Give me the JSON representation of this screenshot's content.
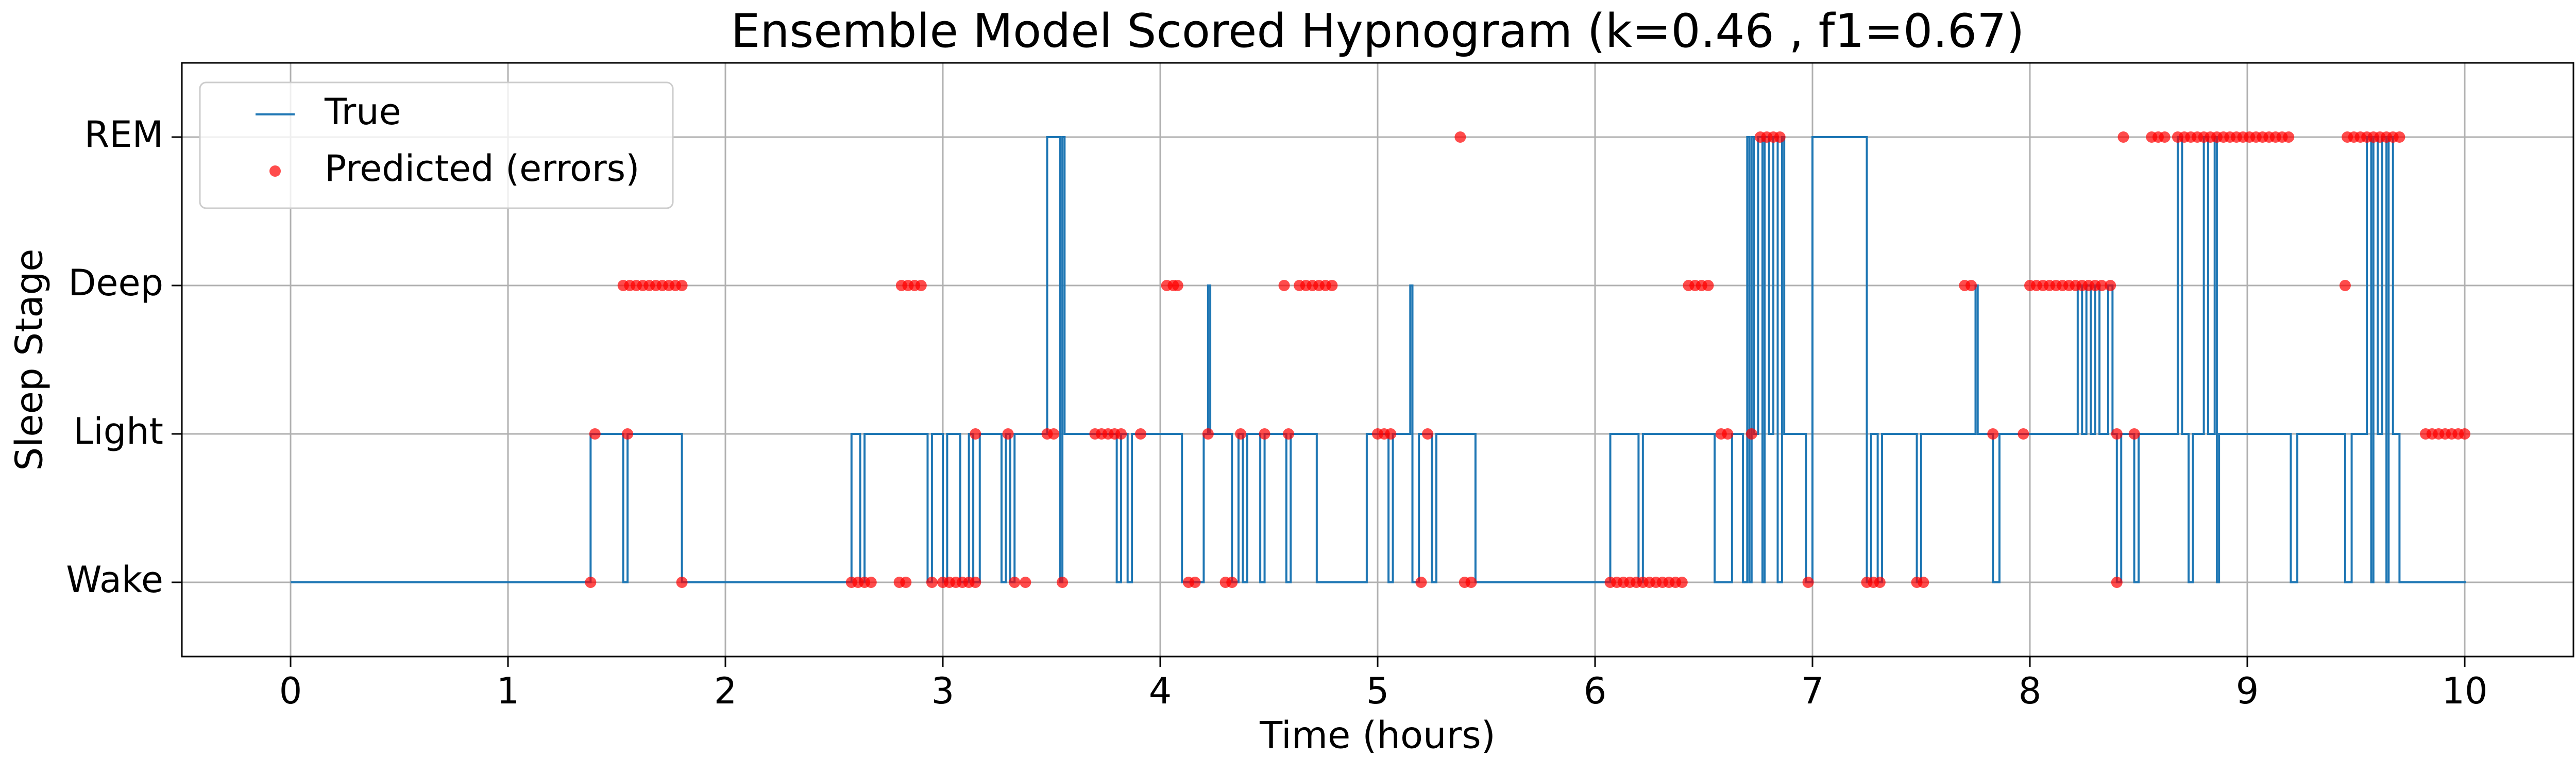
{
  "chart_data": {
    "type": "line",
    "title": "Ensemble Model Scored Hypnogram (k=0.46 , f1=0.67)",
    "xlabel": "Time (hours)",
    "ylabel": "Sleep Stage",
    "xlim": [
      -0.5,
      10.5
    ],
    "ylim": [
      -0.5,
      3.5
    ],
    "xticks": [
      0,
      1,
      2,
      3,
      4,
      5,
      6,
      7,
      8,
      9,
      10
    ],
    "yticks": [
      {
        "value": 0,
        "label": "Wake"
      },
      {
        "value": 1,
        "label": "Light"
      },
      {
        "value": 2,
        "label": "Deep"
      },
      {
        "value": 3,
        "label": "REM"
      }
    ],
    "grid": true,
    "legend": "upper left",
    "series": [
      {
        "name": "True",
        "type": "step",
        "color": "#1f77b4",
        "x": [
          0,
          1.38,
          1.53,
          1.55,
          1.8,
          2.58,
          2.62,
          2.64,
          2.93,
          2.95,
          3.0,
          3.02,
          3.08,
          3.12,
          3.14,
          3.17,
          3.27,
          3.29,
          3.31,
          3.33,
          3.48,
          3.54,
          3.55,
          3.56,
          3.8,
          3.82,
          3.85,
          3.87,
          4.1,
          4.2,
          4.22,
          4.23,
          4.33,
          4.36,
          4.38,
          4.4,
          4.46,
          4.48,
          4.58,
          4.6,
          4.72,
          4.95,
          5.05,
          5.07,
          5.15,
          5.16,
          5.19,
          5.25,
          5.27,
          5.45,
          6.07,
          6.2,
          6.22,
          6.55,
          6.63,
          6.68,
          6.7,
          6.71,
          6.72,
          6.73,
          6.75,
          6.77,
          6.78,
          6.8,
          6.82,
          6.84,
          6.86,
          6.87,
          6.97,
          7.0,
          7.25,
          7.27,
          7.3,
          7.32,
          7.48,
          7.5,
          7.75,
          7.76,
          7.83,
          7.86,
          8.22,
          8.24,
          8.26,
          8.28,
          8.3,
          8.32,
          8.36,
          8.38,
          8.4,
          8.42,
          8.48,
          8.5,
          8.68,
          8.7,
          8.73,
          8.75,
          8.8,
          8.82,
          8.85,
          8.86,
          8.87,
          9.2,
          9.23,
          9.45,
          9.48,
          9.55,
          9.57,
          9.58,
          9.6,
          9.62,
          9.64,
          9.65,
          9.67,
          9.7,
          10.0
        ],
        "values": [
          0,
          1,
          0,
          1,
          0,
          1,
          0,
          1,
          0,
          1,
          0,
          1,
          0,
          1,
          0,
          1,
          0,
          1,
          0,
          1,
          3,
          0,
          3,
          1,
          0,
          1,
          0,
          1,
          0,
          1,
          2,
          1,
          0,
          1,
          0,
          1,
          0,
          1,
          0,
          1,
          0,
          1,
          0,
          1,
          2,
          0,
          1,
          0,
          1,
          0,
          1,
          0,
          1,
          0,
          1,
          0,
          3,
          0,
          3,
          1,
          3,
          0,
          3,
          1,
          3,
          0,
          3,
          1,
          0,
          3,
          0,
          1,
          0,
          1,
          0,
          1,
          2,
          1,
          0,
          1,
          2,
          1,
          2,
          1,
          2,
          1,
          2,
          1,
          0,
          1,
          0,
          1,
          3,
          1,
          0,
          1,
          3,
          1,
          3,
          0,
          1,
          0,
          1,
          0,
          1,
          3,
          0,
          3,
          1,
          3,
          0,
          3,
          1,
          0,
          0
        ]
      },
      {
        "name": "Predicted (errors)",
        "type": "scatter",
        "color": "#ff0000",
        "x": [
          1.53,
          1.56,
          1.59,
          1.62,
          1.65,
          1.68,
          1.71,
          1.74,
          1.77,
          1.8,
          2.81,
          2.84,
          2.87,
          2.9,
          4.03,
          4.06,
          4.08,
          4.57,
          4.64,
          4.67,
          4.7,
          4.73,
          4.76,
          4.79,
          6.43,
          6.46,
          6.49,
          6.52,
          7.7,
          7.73,
          8.0,
          8.03,
          8.06,
          8.09,
          8.12,
          8.15,
          8.18,
          8.21,
          8.24,
          8.27,
          8.3,
          8.33,
          8.37,
          9.45,
          5.38,
          6.76,
          6.79,
          6.82,
          6.85,
          8.43,
          8.56,
          8.59,
          8.62,
          8.68,
          8.71,
          8.74,
          8.77,
          8.8,
          8.83,
          8.86,
          8.89,
          8.92,
          8.95,
          8.98,
          9.01,
          9.04,
          9.07,
          9.1,
          9.13,
          9.16,
          9.19,
          9.46,
          9.49,
          9.52,
          9.55,
          9.58,
          9.61,
          9.64,
          9.67,
          9.7,
          1.4,
          1.55,
          3.15,
          3.3,
          3.48,
          3.51,
          3.7,
          3.73,
          3.76,
          3.79,
          3.82,
          3.91,
          4.22,
          4.37,
          4.48,
          4.59,
          5.0,
          5.03,
          5.06,
          5.23,
          6.58,
          6.61,
          6.72,
          7.83,
          7.97,
          8.4,
          8.48,
          9.82,
          9.85,
          9.88,
          9.91,
          9.94,
          9.97,
          10.0,
          1.38,
          1.8,
          2.58,
          2.61,
          2.64,
          2.67,
          2.8,
          2.83,
          2.95,
          3.0,
          3.03,
          3.06,
          3.09,
          3.12,
          3.15,
          3.33,
          3.38,
          3.55,
          4.13,
          4.16,
          4.3,
          4.33,
          5.2,
          5.4,
          5.43,
          6.07,
          6.1,
          6.13,
          6.16,
          6.19,
          6.22,
          6.25,
          6.28,
          6.31,
          6.34,
          6.37,
          6.4,
          6.98,
          7.25,
          7.28,
          7.31,
          7.48,
          7.51,
          8.4
        ],
        "values": [
          2,
          2,
          2,
          2,
          2,
          2,
          2,
          2,
          2,
          2,
          2,
          2,
          2,
          2,
          2,
          2,
          2,
          2,
          2,
          2,
          2,
          2,
          2,
          2,
          2,
          2,
          2,
          2,
          2,
          2,
          2,
          2,
          2,
          2,
          2,
          2,
          2,
          2,
          2,
          2,
          2,
          2,
          2,
          2,
          3,
          3,
          3,
          3,
          3,
          3,
          3,
          3,
          3,
          3,
          3,
          3,
          3,
          3,
          3,
          3,
          3,
          3,
          3,
          3,
          3,
          3,
          3,
          3,
          3,
          3,
          3,
          3,
          3,
          3,
          3,
          3,
          3,
          3,
          3,
          3,
          1,
          1,
          1,
          1,
          1,
          1,
          1,
          1,
          1,
          1,
          1,
          1,
          1,
          1,
          1,
          1,
          1,
          1,
          1,
          1,
          1,
          1,
          1,
          1,
          1,
          1,
          1,
          1,
          1,
          1,
          1,
          1,
          1,
          1,
          0,
          0,
          0,
          0,
          0,
          0,
          0,
          0,
          0,
          0,
          0,
          0,
          0,
          0,
          0,
          0,
          0,
          0,
          0,
          0,
          0,
          0,
          0,
          0,
          0,
          0,
          0,
          0,
          0,
          0,
          0,
          0,
          0,
          0,
          0,
          0,
          0,
          0,
          0,
          0,
          0,
          0,
          0,
          0
        ]
      }
    ]
  }
}
